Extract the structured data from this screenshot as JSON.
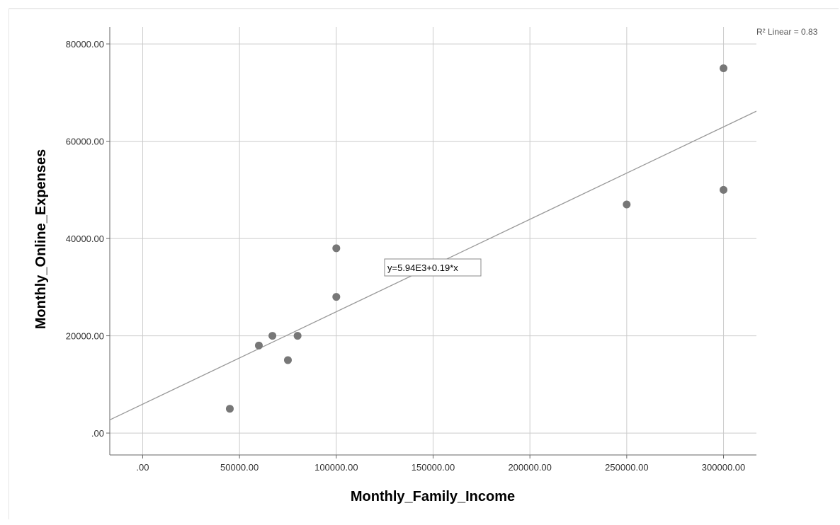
{
  "chart_data": {
    "type": "scatter",
    "xlabel": "Monthly_Family_Income",
    "ylabel": "Monthly_Online_Expenses",
    "xlim": [
      -17000,
      317000
    ],
    "ylim": [
      -4500,
      83500
    ],
    "x_ticks": [
      0,
      50000,
      100000,
      150000,
      200000,
      250000,
      300000
    ],
    "y_ticks": [
      0,
      20000,
      40000,
      60000,
      80000
    ],
    "x_tick_labels": [
      ".00",
      "50000.00",
      "100000.00",
      "150000.00",
      "200000.00",
      "250000.00",
      "300000.00"
    ],
    "y_tick_labels": [
      ".00",
      "20000.00",
      "40000.00",
      "60000.00",
      "80000.00"
    ],
    "grid": true,
    "points": [
      {
        "x": 45000,
        "y": 5000
      },
      {
        "x": 60000,
        "y": 18000
      },
      {
        "x": 67000,
        "y": 20000
      },
      {
        "x": 75000,
        "y": 15000
      },
      {
        "x": 80000,
        "y": 20000
      },
      {
        "x": 100000,
        "y": 38000
      },
      {
        "x": 100000,
        "y": 28000
      },
      {
        "x": 250000,
        "y": 47000
      },
      {
        "x": 300000,
        "y": 75000
      },
      {
        "x": 300000,
        "y": 50000
      }
    ],
    "fit_line": {
      "intercept": 5940,
      "slope": 0.19
    },
    "fit_equation": "y=5.94E3+0.19*x",
    "r_squared_label": "R² Linear = 0.83",
    "colors": {
      "points": "#777777",
      "fit_line": "#999999",
      "grid": "#cccccc",
      "axis": "#666666"
    }
  }
}
